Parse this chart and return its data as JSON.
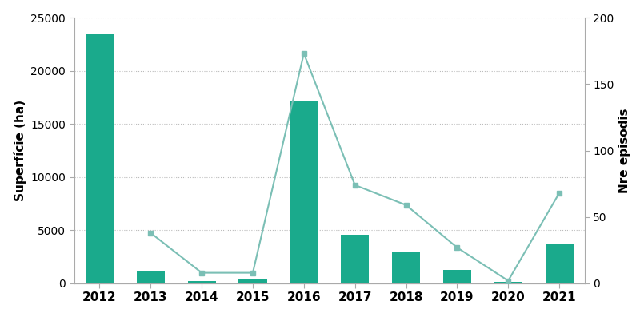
{
  "years": [
    2012,
    2013,
    2014,
    2015,
    2016,
    2017,
    2018,
    2019,
    2020,
    2021
  ],
  "superficie": [
    23500,
    1200,
    200,
    450,
    17200,
    4600,
    2900,
    1250,
    150,
    3700
  ],
  "episodis": [
    null,
    38,
    8,
    8,
    173,
    74,
    59,
    27,
    2,
    68
  ],
  "bar_color": "#1aaa8c",
  "line_color": "#7bbfb5",
  "line_marker": "s",
  "ylabel_left": "Superfície (ha)",
  "ylabel_right": "Nre episodis",
  "ylim_left": [
    0,
    25000
  ],
  "ylim_right": [
    0,
    200
  ],
  "yticks_left": [
    0,
    5000,
    10000,
    15000,
    20000,
    25000
  ],
  "yticks_right": [
    0,
    50,
    100,
    150,
    200
  ],
  "bg_color": "#ffffff",
  "grid_color": "#bbbbbb",
  "spine_color": "#aaaaaa",
  "bar_width": 0.55,
  "title_fontsize": 10,
  "axis_label_fontsize": 11,
  "tick_fontsize": 10,
  "xtick_fontsize": 11
}
